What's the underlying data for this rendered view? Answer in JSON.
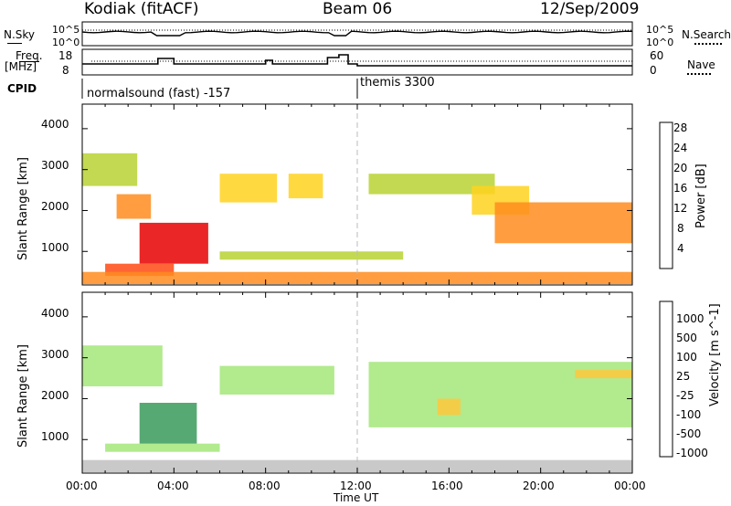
{
  "header": {
    "station": "Kodiak (fitACF)",
    "beam": "Beam 06",
    "date": "12/Sep/2009"
  },
  "status_panels": {
    "nsky_label": "N.Sky",
    "nsky_ticks": [
      "10^5",
      "10^0"
    ],
    "nsearch_label": "N.Search",
    "nsearch_ticks": [
      "10^5",
      "10^0"
    ],
    "freq_label_1": "Freq.",
    "freq_label_2": "[MHz]",
    "freq_ticks": [
      "18",
      "8"
    ],
    "nave_label": "Nave",
    "nave_ticks": [
      "60",
      "0"
    ],
    "cpid_label": "CPID",
    "cpid_segments": [
      "normalsound (fast) -157",
      "themis 3300"
    ]
  },
  "axes": {
    "x_label": "Time UT",
    "x_ticks": [
      "00:00",
      "04:00",
      "08:00",
      "12:00",
      "16:00",
      "20:00",
      "00:00"
    ],
    "y_label": "Slant Range [km]",
    "y_ticks": [
      "1000",
      "2000",
      "3000",
      "4000"
    ]
  },
  "colorbars": {
    "power": {
      "label": "Power [dB]",
      "ticks": [
        "4",
        "8",
        "12",
        "16",
        "20",
        "24",
        "28"
      ],
      "colors": [
        "#1a1aff",
        "#2a4fa8",
        "#2f8a5a",
        "#55a545",
        "#b8d232",
        "#ffd21e",
        "#ff8c1e",
        "#ff4a14",
        "#e60000"
      ]
    },
    "velocity": {
      "label": "Velocity [m s^-1]",
      "ticks": [
        "1000",
        "500",
        "100",
        "25",
        "-25",
        "-100",
        "-500",
        "-1000"
      ],
      "colors": [
        "#1a3aa8",
        "#2f6a8f",
        "#3a9a5a",
        "#55c83c",
        "#a5e67a",
        "#c0c0c0",
        "#ffc83c",
        "#ff9a1e",
        "#ff5a14",
        "#e60000"
      ]
    }
  },
  "chart_data": [
    {
      "type": "heatmap",
      "title": "Power [dB]",
      "xlabel": "Time UT",
      "ylabel": "Slant Range [km]",
      "xlim": [
        "00:00",
        "24:00"
      ],
      "ylim": [
        180,
        4600
      ],
      "clim": [
        0,
        30
      ],
      "features": [
        {
          "time": [
            0.0,
            2.4
          ],
          "range": [
            2600,
            3400
          ],
          "value": 16
        },
        {
          "time": [
            1.5,
            3.0
          ],
          "range": [
            1800,
            2400
          ],
          "value": 22
        },
        {
          "time": [
            2.5,
            5.5
          ],
          "range": [
            700,
            1700
          ],
          "value": 28
        },
        {
          "time": [
            1.0,
            4.0
          ],
          "range": [
            400,
            700
          ],
          "value": 26
        },
        {
          "time": [
            6.0,
            8.5
          ],
          "range": [
            2200,
            2900
          ],
          "value": 18
        },
        {
          "time": [
            9.0,
            10.5
          ],
          "range": [
            2300,
            2900
          ],
          "value": 18
        },
        {
          "time": [
            12.5,
            18.0
          ],
          "range": [
            2400,
            2900
          ],
          "value": 16
        },
        {
          "time": [
            17.0,
            19.5
          ],
          "range": [
            1900,
            2600
          ],
          "value": 18
        },
        {
          "time": [
            18.0,
            24.0
          ],
          "range": [
            1200,
            2200
          ],
          "value": 20
        },
        {
          "time": [
            0.0,
            24.0
          ],
          "range": [
            200,
            500
          ],
          "value": 20
        },
        {
          "time": [
            6.0,
            14.0
          ],
          "range": [
            800,
            1000
          ],
          "value": 14
        }
      ]
    },
    {
      "type": "heatmap",
      "title": "Velocity [m s^-1]",
      "xlabel": "Time UT",
      "ylabel": "Slant Range [km]",
      "xlim": [
        "00:00",
        "24:00"
      ],
      "ylim": [
        180,
        4600
      ],
      "clim": [
        -1000,
        1000
      ],
      "features": [
        {
          "time": [
            0.0,
            3.5
          ],
          "range": [
            2300,
            3300
          ],
          "value": 0
        },
        {
          "time": [
            2.5,
            5.0
          ],
          "range": [
            900,
            1900
          ],
          "value": 150
        },
        {
          "time": [
            1.0,
            6.0
          ],
          "range": [
            700,
            900
          ],
          "value": 0
        },
        {
          "time": [
            6.0,
            11.0
          ],
          "range": [
            2100,
            2800
          ],
          "value": 0
        },
        {
          "time": [
            12.5,
            24.0
          ],
          "range": [
            1300,
            2900
          ],
          "value": 0
        },
        {
          "time": [
            15.5,
            16.5
          ],
          "range": [
            1600,
            2000
          ],
          "value": -200
        },
        {
          "time": [
            0.0,
            24.0
          ],
          "range": [
            200,
            500
          ],
          "value": -50
        },
        {
          "time": [
            21.5,
            24.0
          ],
          "range": [
            2500,
            2700
          ],
          "value": -150
        }
      ]
    }
  ]
}
